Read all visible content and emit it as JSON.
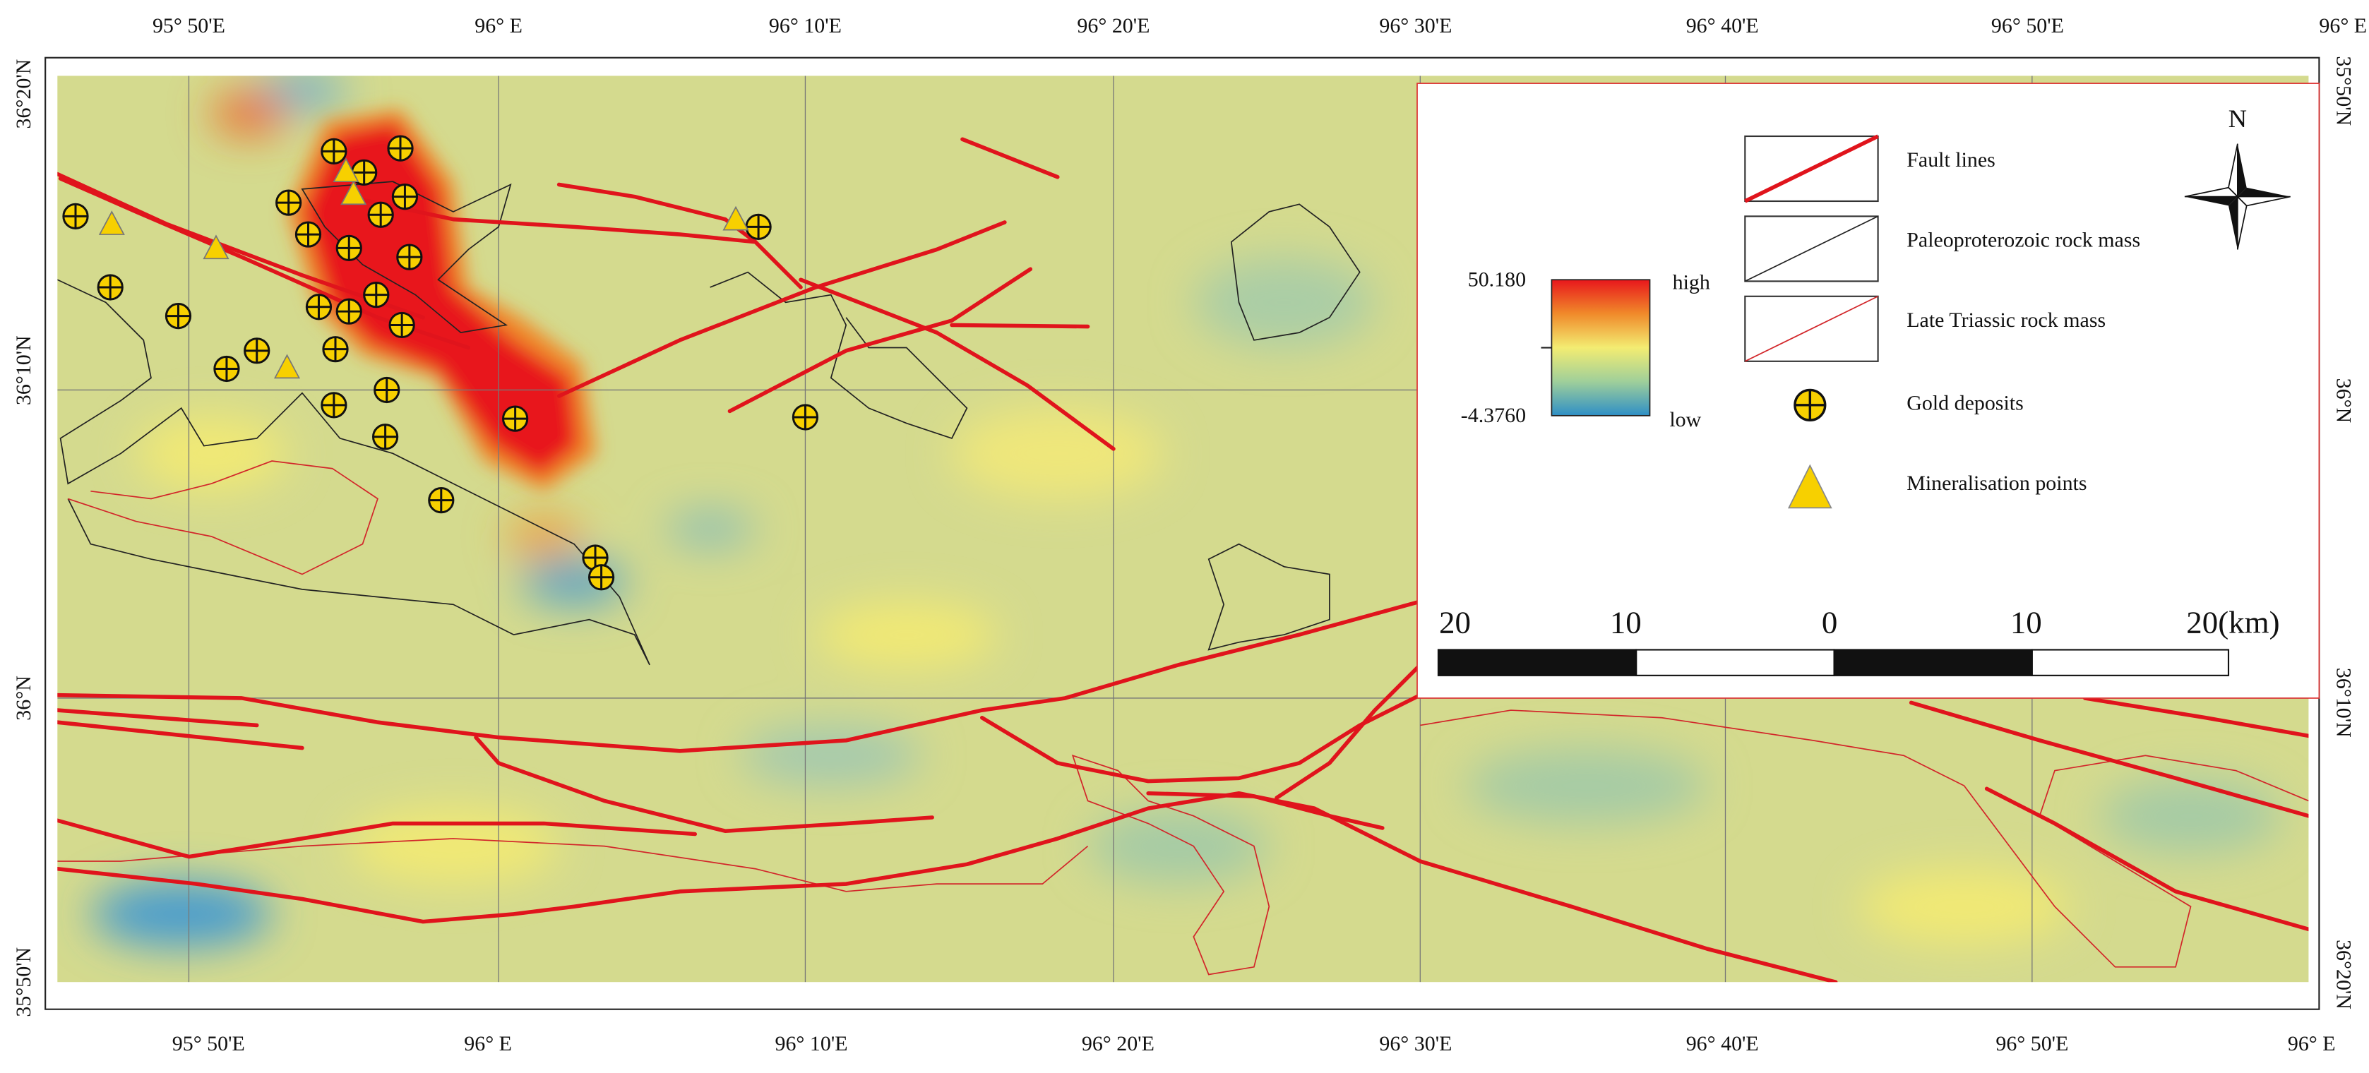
{
  "top_labels": [
    "95° 50'E",
    "96° E",
    "96° 10'E",
    "96° 20'E",
    "96° 30'E",
    "96° 40'E",
    "96° 50'E",
    "96° E"
  ],
  "bottom_labels": [
    "95° 50'E",
    "96° E",
    "96° 10'E",
    "96° 20'E",
    "96° 30'E",
    "96° 40'E",
    "96° 50'E",
    "96° E"
  ],
  "left_labels": [
    "36°20'N",
    "36°10'N",
    "36°N",
    "35°50'N"
  ],
  "right_labels": [
    "35°50'N",
    "36°N",
    "36°10'N",
    "36°20'N"
  ],
  "legend": {
    "max": "50.180",
    "min": "-4.3760",
    "high": "high",
    "low": "low",
    "items": [
      "Fault lines",
      "Paleoproterozoic rock mass",
      "Late Triassic rock mass",
      "Gold deposits",
      "Mineralisation points"
    ],
    "north": "N",
    "scale": [
      "20",
      "10",
      "0",
      "10",
      "20(km)"
    ]
  }
}
